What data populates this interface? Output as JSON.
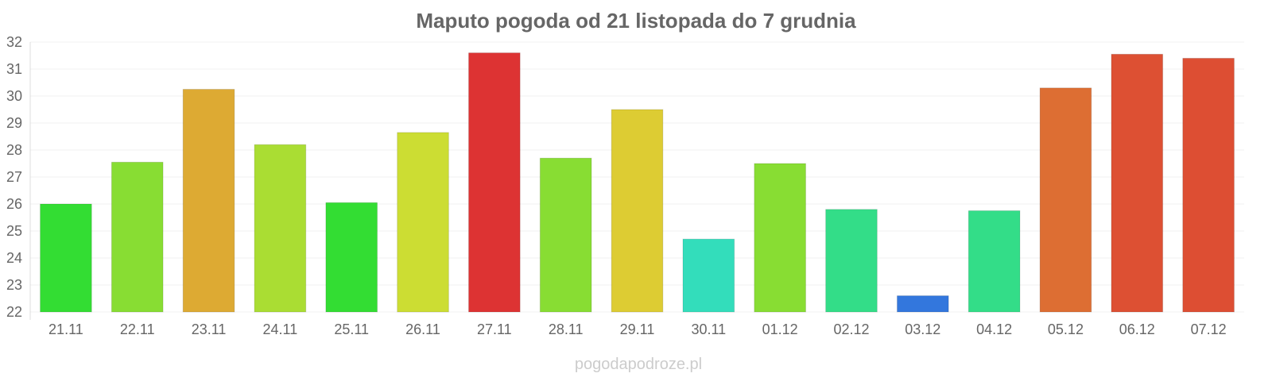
{
  "chart_data": {
    "type": "bar",
    "title": "Maputo pogoda od 21 listopada do 7 grudnia",
    "xlabel": "",
    "ylabel": "",
    "ylim": [
      22,
      32
    ],
    "yticks": [
      22,
      23,
      24,
      25,
      26,
      27,
      28,
      29,
      30,
      31,
      32
    ],
    "grid": true,
    "categories": [
      "21.11",
      "22.11",
      "23.11",
      "24.11",
      "25.11",
      "26.11",
      "27.11",
      "28.11",
      "29.11",
      "30.11",
      "01.12",
      "02.12",
      "03.12",
      "04.12",
      "05.12",
      "06.12",
      "07.12"
    ],
    "values": [
      26.0,
      27.55,
      30.25,
      28.2,
      26.05,
      28.65,
      31.6,
      27.7,
      29.5,
      24.7,
      27.5,
      25.8,
      22.6,
      25.75,
      30.3,
      31.55,
      31.4
    ],
    "colors": [
      "#33dd33",
      "#88dd33",
      "#ddaa33",
      "#aadd33",
      "#33dd33",
      "#ccdd33",
      "#dd3333",
      "#88dd33",
      "#ddcc33",
      "#33ddbb",
      "#88dd33",
      "#33dd88",
      "#3377dd",
      "#33dd88",
      "#dd6e33",
      "#dd5033",
      "#dd4e33"
    ]
  },
  "footer": {
    "credit": "pogodapodroze.pl"
  }
}
